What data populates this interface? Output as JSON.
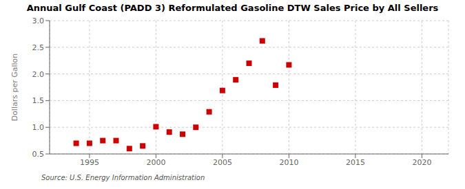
{
  "chart_data": {
    "type": "scatter",
    "title": "Annual Gulf Coast (PADD 3) Reformulated Gasoline DTW Sales Price by All Sellers",
    "y_label": "Dollars per Gallon",
    "annotations": [
      "Source: U.S. Energy Information Administration"
    ],
    "x": [
      1994,
      1995,
      1996,
      1997,
      1998,
      1999,
      2000,
      2001,
      2002,
      2003,
      2004,
      2005,
      2006,
      2007,
      2008,
      2009,
      2010
    ],
    "values": [
      0.7,
      0.7,
      0.75,
      0.75,
      0.6,
      0.65,
      1.01,
      0.91,
      0.87,
      1.0,
      1.29,
      1.69,
      1.89,
      2.2,
      2.62,
      1.79,
      2.17
    ],
    "color": "#cc0000",
    "marker": "square",
    "xlim": [
      1992,
      2022
    ],
    "ylim": [
      0.5,
      3.0
    ],
    "xticks": [
      1995,
      2000,
      2005,
      2010,
      2015,
      2020
    ],
    "yticks": [
      0.5,
      {
        "value": 1.0,
        "label": "1.0"
      },
      1.5,
      {
        "value": 2.0,
        "label": "2.0"
      },
      2.5,
      {
        "value": 3.0,
        "label": "3.0"
      }
    ],
    "grid": true
  }
}
